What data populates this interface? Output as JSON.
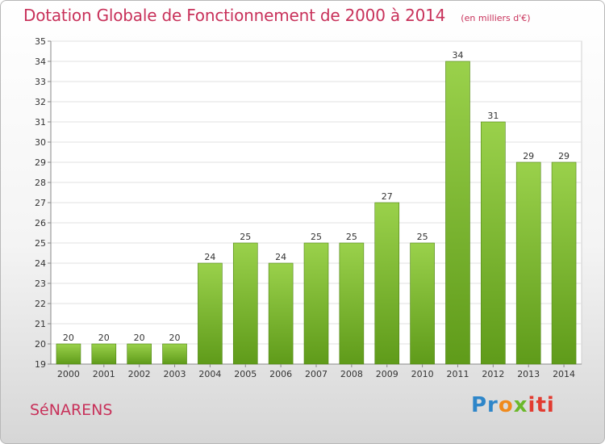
{
  "header": {
    "title": "Dotation Globale de Fonctionnement de 2000 à 2014",
    "subtitle": "(en milliers d'€)"
  },
  "footer": {
    "commune": "SéNARENS",
    "logo_parts": [
      "Pr",
      "o",
      "x",
      "iti"
    ]
  },
  "colors": {
    "accent": "#c8315a",
    "bar_top": "#9ad14b",
    "bar_bottom": "#5f9b1a"
  },
  "chart_data": {
    "type": "bar",
    "title": "Dotation Globale de Fonctionnement de 2000 à 2014",
    "subtitle": "(en milliers d'€)",
    "categories": [
      "2000",
      "2001",
      "2002",
      "2003",
      "2004",
      "2005",
      "2006",
      "2007",
      "2008",
      "2009",
      "2010",
      "2011",
      "2012",
      "2013",
      "2014"
    ],
    "values": [
      20,
      20,
      20,
      20,
      24,
      25,
      24,
      25,
      25,
      27,
      25,
      34,
      31,
      29,
      29
    ],
    "ylim": [
      19,
      35
    ],
    "yticks": [
      19,
      20,
      21,
      22,
      23,
      24,
      25,
      26,
      27,
      28,
      29,
      30,
      31,
      32,
      33,
      34,
      35
    ],
    "grid": true,
    "legend": "none"
  }
}
